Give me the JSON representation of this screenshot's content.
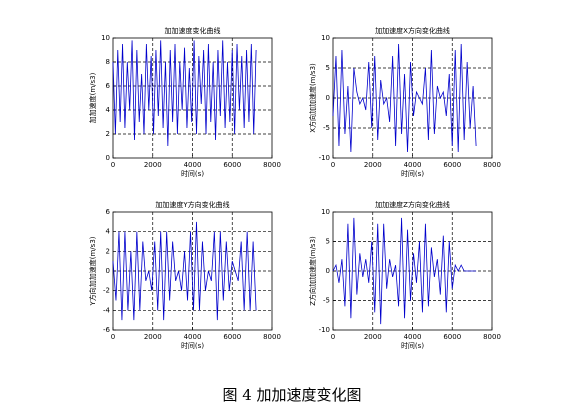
{
  "chart_data": [
    {
      "type": "line",
      "title": "加加速度变化曲线",
      "xlabel": "时间(s)",
      "ylabel": "加加速度(m/s3)",
      "color": "#0000cc",
      "grid": true,
      "xlim": [
        0,
        8000
      ],
      "xticks": [
        0,
        2000,
        4000,
        6000,
        8000
      ],
      "ylim": [
        0,
        10
      ],
      "yticks": [
        0,
        2,
        4,
        6,
        8,
        10
      ],
      "x": [
        0,
        120,
        240,
        360,
        480,
        600,
        720,
        840,
        960,
        1080,
        1200,
        1320,
        1440,
        1560,
        1680,
        1800,
        1920,
        2040,
        2160,
        2280,
        2400,
        2520,
        2640,
        2760,
        2880,
        3000,
        3120,
        3240,
        3360,
        3480,
        3600,
        3720,
        3840,
        3960,
        4080,
        4200,
        4320,
        4440,
        4560,
        4680,
        4800,
        4920,
        5040,
        5160,
        5280,
        5400,
        5520,
        5640,
        5760,
        5880,
        6000,
        6120,
        6240,
        6360,
        6480,
        6600,
        6720,
        6840,
        6960,
        7080,
        7200
      ],
      "values": [
        8,
        2,
        9,
        3,
        9.5,
        2.5,
        8,
        4,
        9.8,
        1.5,
        9,
        3,
        7,
        2,
        9.5,
        4,
        8.5,
        2,
        9,
        3.5,
        9.8,
        2.5,
        8,
        1,
        9,
        3,
        9.5,
        2,
        8,
        4,
        9.2,
        2.5,
        7.5,
        3,
        9.8,
        2,
        8.5,
        4.5,
        9,
        2,
        9.5,
        3,
        8,
        1.5,
        9,
        3.5,
        9.8,
        2.5,
        8,
        3,
        9,
        2,
        9.5,
        4,
        8.5,
        2.5,
        9,
        3,
        9.5,
        2,
        9
      ]
    },
    {
      "type": "line",
      "title": "加加速度X方向变化曲线",
      "xlabel": "时间(s)",
      "ylabel": "X方向加加速度(m/s3)",
      "color": "#0000cc",
      "grid": true,
      "xlim": [
        0,
        8000
      ],
      "xticks": [
        0,
        2000,
        4000,
        6000,
        8000
      ],
      "ylim": [
        -10,
        10
      ],
      "yticks": [
        -10,
        -5,
        0,
        5,
        10
      ],
      "x": [
        0,
        150,
        300,
        450,
        600,
        750,
        900,
        1050,
        1200,
        1350,
        1500,
        1650,
        1800,
        1950,
        2100,
        2250,
        2400,
        2550,
        2700,
        2850,
        3000,
        3150,
        3300,
        3450,
        3600,
        3750,
        3900,
        4050,
        4200,
        4350,
        4500,
        4650,
        4800,
        4950,
        5100,
        5250,
        5400,
        5550,
        5700,
        5850,
        6000,
        6150,
        6300,
        6450,
        6600,
        6750,
        6900,
        7050,
        7200
      ],
      "values": [
        -3,
        7,
        -8,
        8,
        -6,
        2,
        -9,
        5,
        1,
        -1,
        0,
        -2,
        6,
        -5,
        7,
        -7,
        3,
        -1,
        0,
        -4,
        7,
        -8,
        9,
        -6,
        4,
        -9,
        6,
        -3,
        1,
        0,
        -1,
        5,
        -7,
        8,
        -6,
        2,
        0,
        1,
        -3,
        4,
        -8,
        8,
        -9,
        9,
        -7,
        6,
        -5,
        2,
        -8
      ]
    },
    {
      "type": "line",
      "title": "加加速度Y方向变化曲线",
      "xlabel": "时间(s)",
      "ylabel": "Y方向加加速度(m/s3)",
      "color": "#0000cc",
      "grid": true,
      "xlim": [
        0,
        8000
      ],
      "xticks": [
        0,
        2000,
        4000,
        6000,
        8000
      ],
      "ylim": [
        -6,
        6
      ],
      "yticks": [
        -6,
        -4,
        -2,
        0,
        2,
        4,
        6
      ],
      "x": [
        0,
        150,
        300,
        450,
        600,
        750,
        900,
        1050,
        1200,
        1350,
        1500,
        1650,
        1800,
        1950,
        2100,
        2250,
        2400,
        2550,
        2700,
        2850,
        3000,
        3150,
        3300,
        3450,
        3600,
        3750,
        3900,
        4050,
        4200,
        4350,
        4500,
        4650,
        4800,
        4950,
        5100,
        5250,
        5400,
        5550,
        5700,
        5850,
        6000,
        6150,
        6300,
        6450,
        6600,
        6750,
        6900,
        7050,
        7200
      ],
      "values": [
        1,
        -3,
        4,
        -5,
        4,
        -4,
        2,
        -5,
        4,
        -4,
        3,
        -1,
        0,
        -2,
        3,
        -4,
        4,
        -5,
        4,
        -3,
        3,
        -1,
        0,
        -2,
        2,
        -3,
        4,
        -4,
        5,
        -4,
        3,
        -2,
        0,
        -1,
        4,
        -5,
        4,
        -3,
        3,
        -2,
        1,
        0,
        -1,
        3,
        -4,
        4,
        -4,
        3,
        -4
      ]
    },
    {
      "type": "line",
      "title": "加加速度Z方向变化曲线",
      "xlabel": "时间(s)",
      "ylabel": "Z方向加加速度(m/s3)",
      "color": "#0000cc",
      "grid": true,
      "xlim": [
        0,
        8000
      ],
      "xticks": [
        0,
        2000,
        4000,
        6000,
        8000
      ],
      "ylim": [
        -10,
        10
      ],
      "yticks": [
        -10,
        -5,
        0,
        5,
        10
      ],
      "x": [
        0,
        150,
        300,
        450,
        600,
        750,
        900,
        1050,
        1200,
        1350,
        1500,
        1650,
        1800,
        1950,
        2100,
        2250,
        2400,
        2550,
        2700,
        2850,
        3000,
        3150,
        3300,
        3450,
        3600,
        3750,
        3900,
        4050,
        4200,
        4350,
        4500,
        4650,
        4800,
        4950,
        5100,
        5250,
        5400,
        5550,
        5700,
        5850,
        6000,
        6150,
        6300,
        6450,
        6600,
        6750,
        6900,
        7050,
        7200
      ],
      "values": [
        0,
        1,
        -2,
        2,
        -6,
        8,
        -8,
        9,
        -4,
        3,
        -1,
        2,
        -2,
        5,
        -7,
        8,
        -9,
        8,
        -3,
        2,
        -1,
        1,
        -6,
        9,
        -8,
        7,
        -5,
        3,
        -2,
        5,
        -7,
        8,
        -6,
        4,
        -1,
        2,
        -4,
        6,
        -7,
        5,
        -3,
        1,
        0,
        1,
        0,
        0,
        0,
        0,
        0
      ]
    }
  ],
  "caption": "图 4  加加速度变化图"
}
